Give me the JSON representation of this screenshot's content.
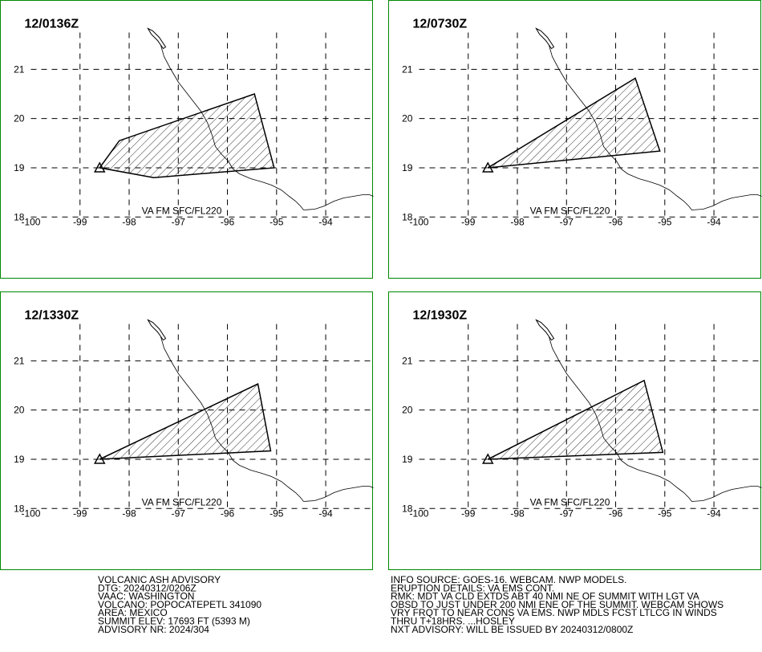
{
  "map": {
    "xlim": [
      -100.62,
      -93.03
    ],
    "ylim": [
      16.74,
      22.4
    ],
    "xticks": [
      -100,
      -99,
      -98,
      -97,
      -96,
      -95,
      -94
    ],
    "yticks": [
      18,
      19,
      20,
      21
    ],
    "panels": [
      {
        "time": "12/0136Z",
        "label": "VA FM SFC/FL220",
        "polygon": [
          [
            -98.6,
            19.0
          ],
          [
            -98.2,
            19.55
          ],
          [
            -95.45,
            20.5
          ],
          [
            -95.05,
            19.0
          ],
          [
            -97.5,
            18.8
          ]
        ]
      },
      {
        "time": "12/0730Z",
        "label": "VA FM SFC/FL220",
        "polygon": [
          [
            -98.6,
            19.0
          ],
          [
            -95.6,
            20.82
          ],
          [
            -95.1,
            19.34
          ]
        ]
      },
      {
        "time": "12/1330Z",
        "label": "VA FM SFC/FL220",
        "polygon": [
          [
            -98.6,
            19.0
          ],
          [
            -95.38,
            20.53
          ],
          [
            -95.12,
            19.17
          ]
        ]
      },
      {
        "time": "12/1930Z",
        "label": "VA FM SFC/FL220",
        "polygon": [
          [
            -98.6,
            19.0
          ],
          [
            -95.42,
            20.6
          ],
          [
            -95.04,
            19.14
          ]
        ]
      }
    ]
  },
  "advisory": {
    "left": [
      "VOLCANIC ASH ADVISORY",
      "DTG: 20240312/0206Z",
      "VAAC: WASHINGTON",
      "VOLCANO: POPOCATEPETL 341090",
      "AREA: MEXICO",
      "SUMMIT ELEV: 17693 FT (5393 M)",
      "ADVISORY NR: 2024/304"
    ],
    "right": [
      "INFO SOURCE: GOES-16. WEBCAM. NWP MODELS.",
      "ERUPTION DETAILS: VA EMS CONT.",
      "RMK: MDT VA CLD EXTDS ABT 40 NMI NE OF SUMMIT WITH LGT VA",
      "OBSD TO JUST UNDER 200 NMI ENE OF THE SUMMIT. WEBCAM SHOWS",
      "VRY FRQT TO NEAR CONS VA EMS. NWP MDLS FCST LTLCG IN WINDS",
      "THRU T+18HRS. ...HOSLEY",
      "NXT ADVISORY: WILL BE ISSUED BY 20240312/0800Z"
    ]
  }
}
